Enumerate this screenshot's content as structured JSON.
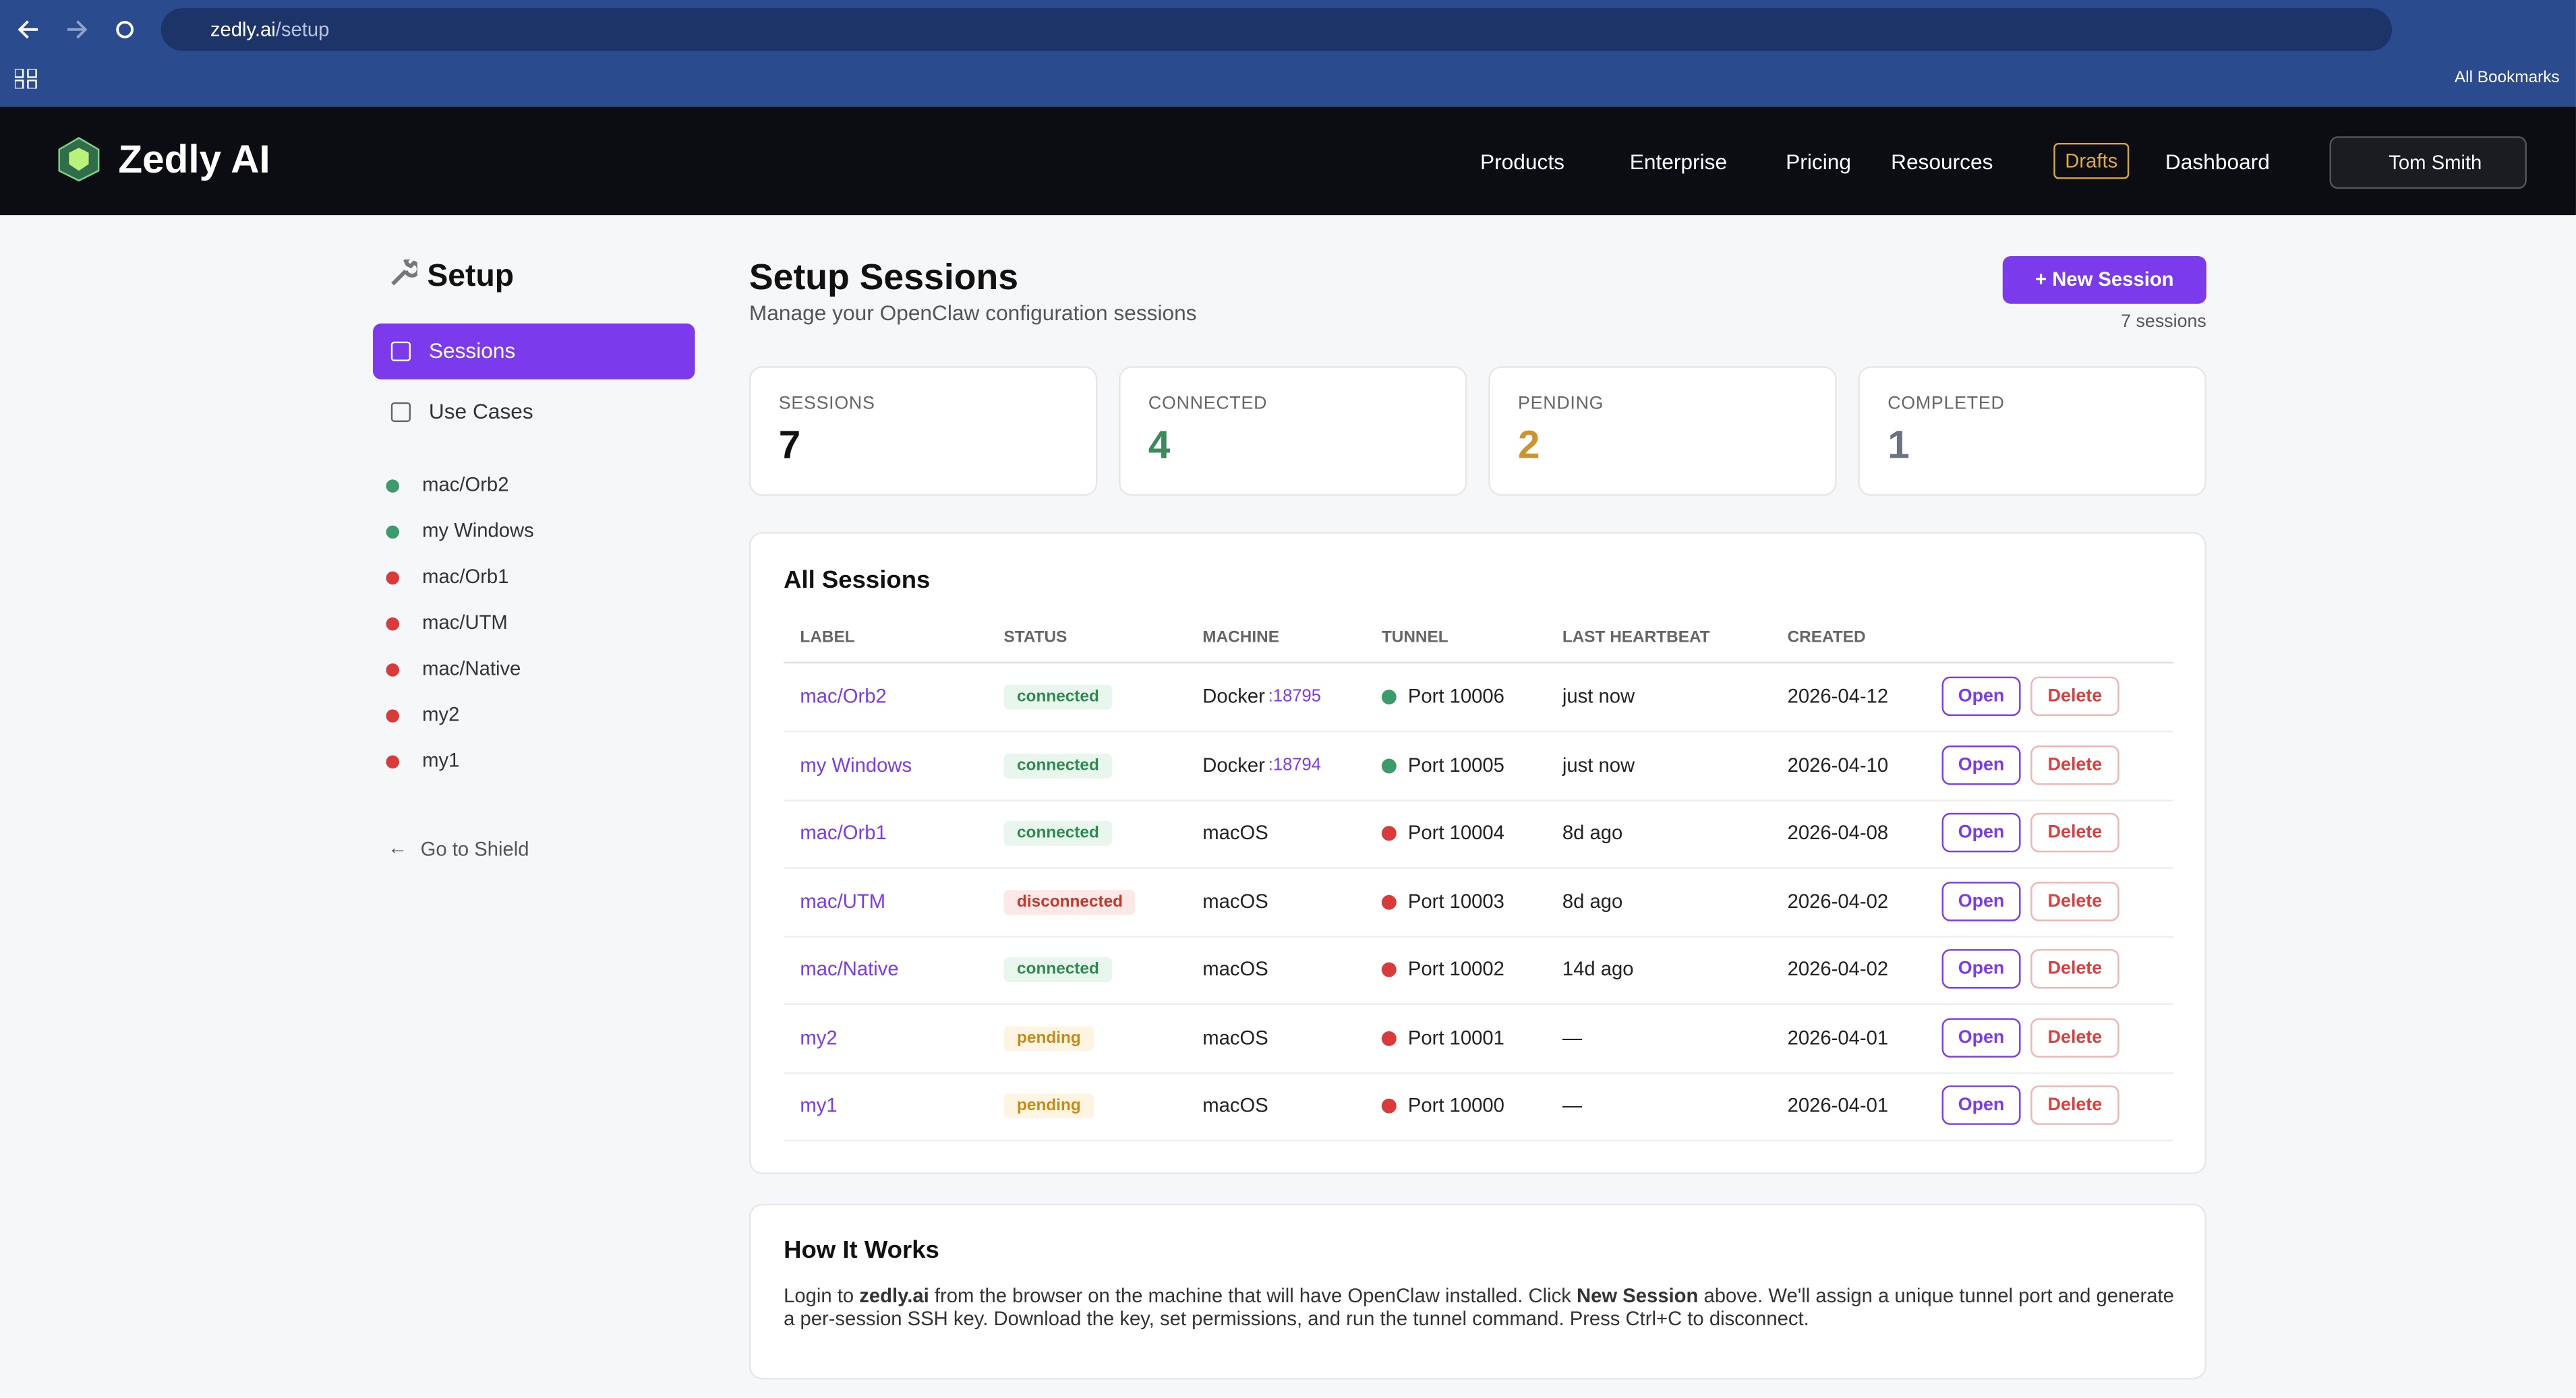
{
  "browser": {
    "url_host": "zedly.ai",
    "url_path": "/setup",
    "bookmarks": "All Bookmarks"
  },
  "nav": {
    "brand": "Zedly AI",
    "items": [
      "Products",
      "Enterprise",
      "Pricing",
      "Resources"
    ],
    "drafts": "Drafts",
    "dashboard": "Dashboard",
    "user": "Tom Smith"
  },
  "sidebar": {
    "title": "Setup",
    "menu": [
      "Sessions",
      "Use Cases"
    ],
    "sessions": [
      {
        "label": "mac/Orb2",
        "color": "#3c9a6b"
      },
      {
        "label": "my Windows",
        "color": "#3c9a6b"
      },
      {
        "label": "mac/Orb1",
        "color": "#d93a3a"
      },
      {
        "label": "mac/UTM",
        "color": "#d93a3a"
      },
      {
        "label": "mac/Native",
        "color": "#d93a3a"
      },
      {
        "label": "my2",
        "color": "#d93a3a"
      },
      {
        "label": "my1",
        "color": "#d93a3a"
      }
    ],
    "back": "Go to Shield"
  },
  "header": {
    "title": "Setup Sessions",
    "subtitle": "Manage your OpenClaw configuration sessions",
    "new_button": "New Session",
    "count": "7 sessions"
  },
  "stats": [
    {
      "label": "SESSIONS",
      "value": 7,
      "color": "#111111"
    },
    {
      "label": "CONNECTED",
      "value": 4,
      "color": "#3c8a5c"
    },
    {
      "label": "PENDING",
      "value": 2,
      "color": "#c9952e"
    },
    {
      "label": "COMPLETED",
      "value": 1,
      "color": "#6b7280"
    }
  ],
  "table": {
    "title": "All Sessions",
    "columns": [
      "LABEL",
      "STATUS",
      "MACHINE",
      "TUNNEL",
      "LAST HEARTBEAT",
      "CREATED"
    ],
    "actions": [
      "Open",
      "Delete"
    ],
    "rows": [
      {
        "label": "mac/Orb2",
        "status": "connected",
        "machine": "Docker",
        "machine_port": ":18795",
        "tunnel": "Port 10006",
        "tunnel_color": "#3c9a6b",
        "heartbeat": "just now",
        "created": "2026-04-12"
      },
      {
        "label": "my Windows",
        "status": "connected",
        "machine": "Docker",
        "machine_port": ":18794",
        "tunnel": "Port 10005",
        "tunnel_color": "#3c9a6b",
        "heartbeat": "just now",
        "created": "2026-04-10"
      },
      {
        "label": "mac/Orb1",
        "status": "connected",
        "machine": "macOS",
        "tunnel": "Port 10004",
        "tunnel_color": "#d93a3a",
        "heartbeat": "8d ago",
        "created": "2026-04-08"
      },
      {
        "label": "mac/UTM",
        "status": "disconnected",
        "machine": "macOS",
        "tunnel": "Port 10003",
        "tunnel_color": "#d93a3a",
        "heartbeat": "8d ago",
        "created": "2026-04-02"
      },
      {
        "label": "mac/Native",
        "status": "connected",
        "machine": "macOS",
        "tunnel": "Port 10002",
        "tunnel_color": "#d93a3a",
        "heartbeat": "14d ago",
        "created": "2026-04-02"
      },
      {
        "label": "my2",
        "status": "pending",
        "machine": "macOS",
        "tunnel": "Port 10001",
        "tunnel_color": "#d93a3a",
        "heartbeat": "—",
        "created": "2026-04-01"
      },
      {
        "label": "my1",
        "status": "pending",
        "machine": "macOS",
        "tunnel": "Port 10000",
        "tunnel_color": "#d93a3a",
        "heartbeat": "—",
        "created": "2026-04-01"
      }
    ]
  },
  "how": {
    "title": "How It Works",
    "parts": [
      "Login to ",
      "zedly.ai",
      " from the browser on the machine that will have OpenClaw installed. Click ",
      "New Session",
      " above. We'll assign a unique tunnel port and generate a per-session SSH key. Download the key, set permissions, and run the tunnel command. Press Ctrl+C to disconnect."
    ]
  }
}
